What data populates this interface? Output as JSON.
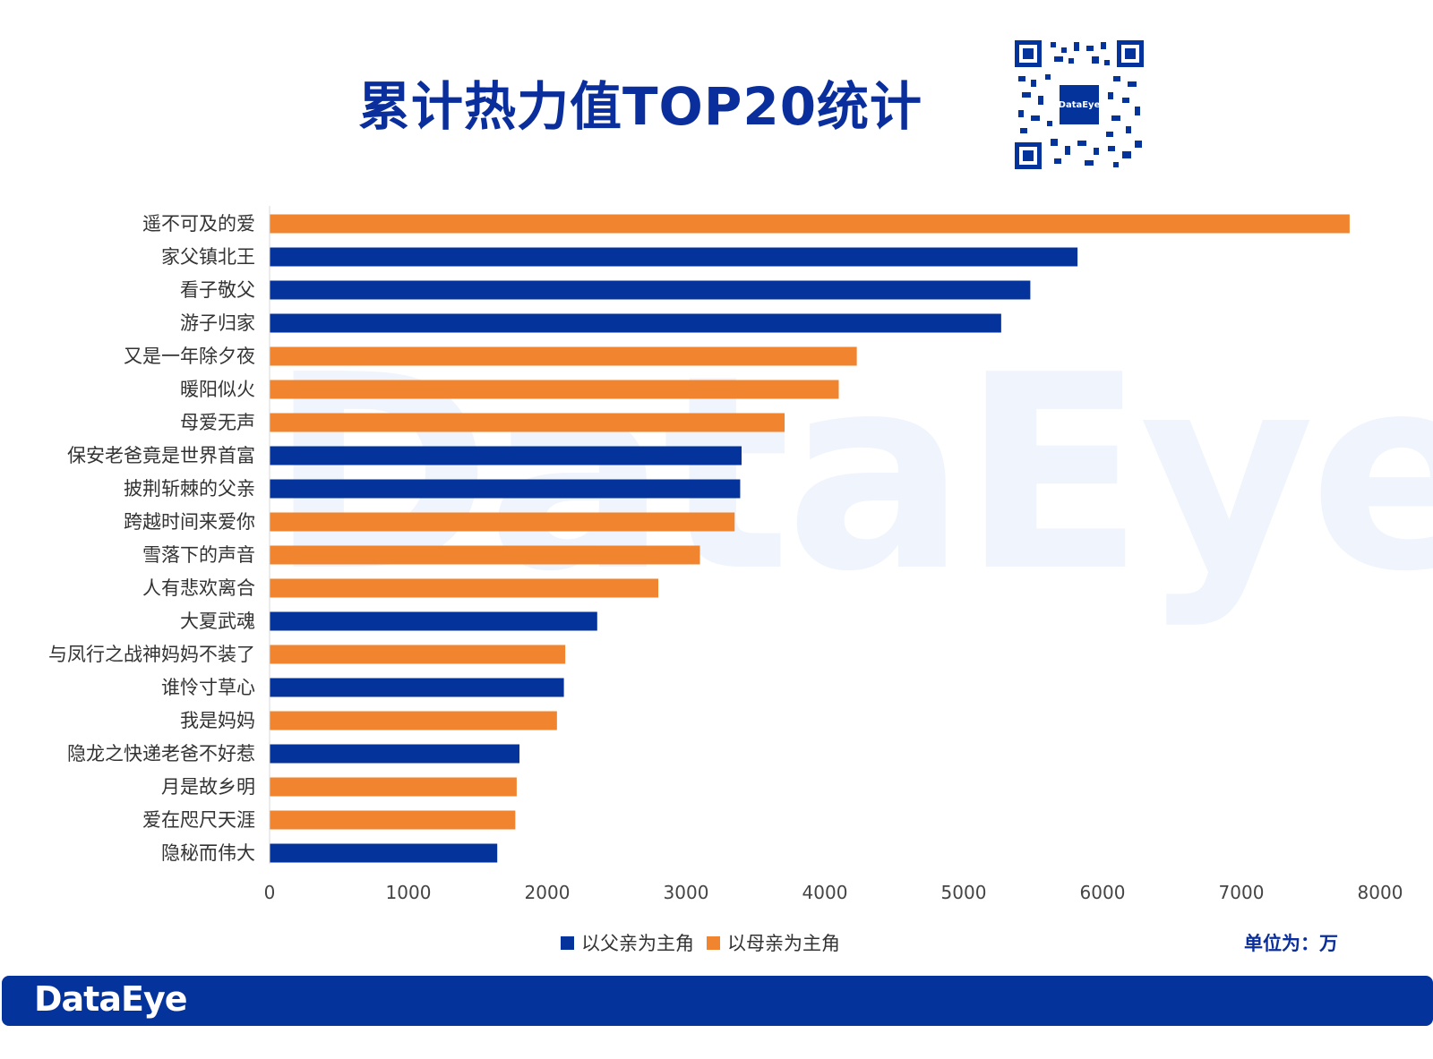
{
  "header": {
    "title": "累计热力值TOP20统计",
    "qr_logo_text": "DataEye",
    "watermark_text": "DataEye"
  },
  "unit_label": "单位为：万",
  "footer": {
    "brand": "DataEye"
  },
  "colors": {
    "father": "#05339c",
    "mother": "#f0842f",
    "accent": "#0a2f9c"
  },
  "chart_data": {
    "type": "bar",
    "orientation": "horizontal",
    "title": "累计热力值TOP20统计",
    "xlim": [
      0,
      8000
    ],
    "xticks": [
      0,
      1000,
      2000,
      3000,
      4000,
      5000,
      6000,
      7000,
      8000
    ],
    "grid": false,
    "legend_position": "bottom",
    "legend": [
      {
        "key": "father",
        "label": "以父亲为主角"
      },
      {
        "key": "mother",
        "label": "以母亲为主角"
      }
    ],
    "bars": [
      {
        "label": "遥不可及的爱",
        "value": 7780,
        "group": "mother"
      },
      {
        "label": "家父镇北王",
        "value": 5820,
        "group": "father"
      },
      {
        "label": "看子敬父",
        "value": 5480,
        "group": "father"
      },
      {
        "label": "游子归家",
        "value": 5270,
        "group": "father"
      },
      {
        "label": "又是一年除夕夜",
        "value": 4230,
        "group": "mother"
      },
      {
        "label": "暖阳似火",
        "value": 4100,
        "group": "mother"
      },
      {
        "label": "母爱无声",
        "value": 3710,
        "group": "mother"
      },
      {
        "label": "保安老爸竟是世界首富",
        "value": 3400,
        "group": "father"
      },
      {
        "label": "披荆斩棘的父亲",
        "value": 3390,
        "group": "father"
      },
      {
        "label": "跨越时间来爱你",
        "value": 3350,
        "group": "mother"
      },
      {
        "label": "雪落下的声音",
        "value": 3100,
        "group": "mother"
      },
      {
        "label": "人有悲欢离合",
        "value": 2800,
        "group": "mother"
      },
      {
        "label": "大夏武魂",
        "value": 2360,
        "group": "father"
      },
      {
        "label": "与凤行之战神妈妈不装了",
        "value": 2130,
        "group": "mother"
      },
      {
        "label": "谁怜寸草心",
        "value": 2120,
        "group": "father"
      },
      {
        "label": "我是妈妈",
        "value": 2070,
        "group": "mother"
      },
      {
        "label": "隐龙之快递老爸不好惹",
        "value": 1800,
        "group": "father"
      },
      {
        "label": "月是故乡明",
        "value": 1780,
        "group": "mother"
      },
      {
        "label": "爱在咫尺天涯",
        "value": 1770,
        "group": "mother"
      },
      {
        "label": "隐秘而伟大",
        "value": 1640,
        "group": "father"
      }
    ]
  }
}
